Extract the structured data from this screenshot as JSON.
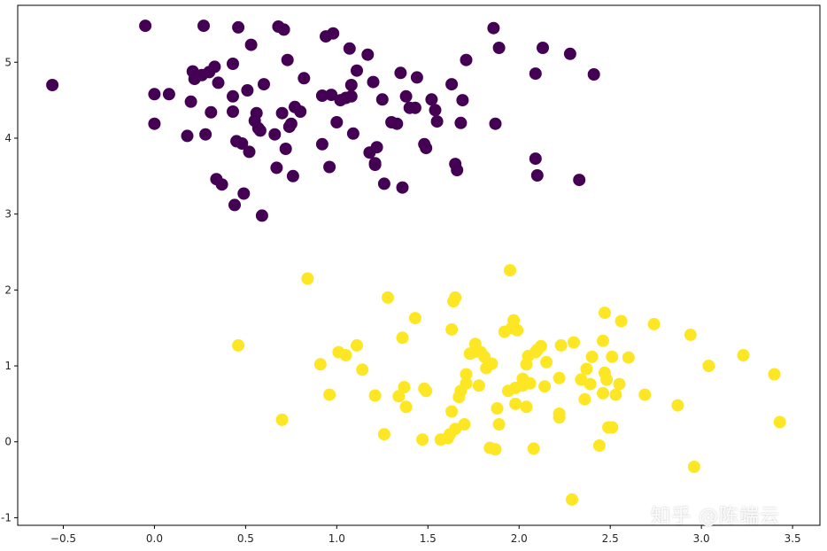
{
  "chart_data": {
    "type": "scatter",
    "title": "",
    "xlabel": "",
    "ylabel": "",
    "xlim": [
      -0.75,
      3.65
    ],
    "ylim": [
      -1.1,
      5.75
    ],
    "xticks": [
      -0.5,
      0.0,
      0.5,
      1.0,
      1.5,
      2.0,
      2.5,
      3.0,
      3.5
    ],
    "xtick_labels": [
      "−0.5",
      "0.0",
      "0.5",
      "1.0",
      "1.5",
      "2.0",
      "2.5",
      "3.0",
      "3.5"
    ],
    "yticks": [
      -1,
      0,
      1,
      2,
      3,
      4,
      5
    ],
    "ytick_labels": [
      "-1",
      "0",
      "1",
      "2",
      "3",
      "4",
      "5"
    ],
    "grid": false,
    "series": [
      {
        "color": "#440154",
        "points": [
          [
            -0.56,
            4.7
          ],
          [
            -0.05,
            5.48
          ],
          [
            0.0,
            4.58
          ],
          [
            0.0,
            4.19
          ],
          [
            0.08,
            4.58
          ],
          [
            0.18,
            4.03
          ],
          [
            0.2,
            4.48
          ],
          [
            0.21,
            4.88
          ],
          [
            0.22,
            4.78
          ],
          [
            0.26,
            4.83
          ],
          [
            0.27,
            5.48
          ],
          [
            0.28,
            4.05
          ],
          [
            0.3,
            4.87
          ],
          [
            0.31,
            4.34
          ],
          [
            0.33,
            4.94
          ],
          [
            0.34,
            3.46
          ],
          [
            0.35,
            4.73
          ],
          [
            0.37,
            3.39
          ],
          [
            0.43,
            4.98
          ],
          [
            0.43,
            4.35
          ],
          [
            0.43,
            4.55
          ],
          [
            0.44,
            3.12
          ],
          [
            0.45,
            3.96
          ],
          [
            0.46,
            5.46
          ],
          [
            0.48,
            3.93
          ],
          [
            0.49,
            3.27
          ],
          [
            0.51,
            4.63
          ],
          [
            0.52,
            3.82
          ],
          [
            0.53,
            5.23
          ],
          [
            0.55,
            4.23
          ],
          [
            0.56,
            4.33
          ],
          [
            0.57,
            4.13
          ],
          [
            0.58,
            4.1
          ],
          [
            0.59,
            2.98
          ],
          [
            0.6,
            4.71
          ],
          [
            0.66,
            4.05
          ],
          [
            0.67,
            3.61
          ],
          [
            0.68,
            5.47
          ],
          [
            0.7,
            4.33
          ],
          [
            0.71,
            5.43
          ],
          [
            0.72,
            3.86
          ],
          [
            0.73,
            5.03
          ],
          [
            0.74,
            4.15
          ],
          [
            0.75,
            4.19
          ],
          [
            0.76,
            3.5
          ],
          [
            0.77,
            4.41
          ],
          [
            0.8,
            4.35
          ],
          [
            0.82,
            4.79
          ],
          [
            0.92,
            3.92
          ],
          [
            0.92,
            4.56
          ],
          [
            0.94,
            5.34
          ],
          [
            0.96,
            3.62
          ],
          [
            0.97,
            4.57
          ],
          [
            0.98,
            5.38
          ],
          [
            1.0,
            4.21
          ],
          [
            1.02,
            4.5
          ],
          [
            1.05,
            4.53
          ],
          [
            1.07,
            5.18
          ],
          [
            1.08,
            4.7
          ],
          [
            1.08,
            4.55
          ],
          [
            1.09,
            4.06
          ],
          [
            1.11,
            4.89
          ],
          [
            1.17,
            5.1
          ],
          [
            1.18,
            3.81
          ],
          [
            1.2,
            4.74
          ],
          [
            1.21,
            3.65
          ],
          [
            1.21,
            3.67
          ],
          [
            1.22,
            3.88
          ],
          [
            1.25,
            4.51
          ],
          [
            1.26,
            3.4
          ],
          [
            1.3,
            4.21
          ],
          [
            1.33,
            4.19
          ],
          [
            1.35,
            4.86
          ],
          [
            1.36,
            3.35
          ],
          [
            1.38,
            4.55
          ],
          [
            1.4,
            4.4
          ],
          [
            1.43,
            4.4
          ],
          [
            1.44,
            4.8
          ],
          [
            1.48,
            3.92
          ],
          [
            1.49,
            3.87
          ],
          [
            1.52,
            4.51
          ],
          [
            1.54,
            4.37
          ],
          [
            1.55,
            4.22
          ],
          [
            1.63,
            4.71
          ],
          [
            1.65,
            3.66
          ],
          [
            1.66,
            3.58
          ],
          [
            1.68,
            4.2
          ],
          [
            1.69,
            4.5
          ],
          [
            1.71,
            5.03
          ],
          [
            1.86,
            5.45
          ],
          [
            1.87,
            4.19
          ],
          [
            1.89,
            5.19
          ],
          [
            2.09,
            3.73
          ],
          [
            2.09,
            4.85
          ],
          [
            2.1,
            3.51
          ],
          [
            2.13,
            5.19
          ],
          [
            2.28,
            5.11
          ],
          [
            2.33,
            3.45
          ],
          [
            2.41,
            4.84
          ]
        ]
      },
      {
        "color": "#fde725",
        "points": [
          [
            0.46,
            1.27
          ],
          [
            0.7,
            0.29
          ],
          [
            0.84,
            2.15
          ],
          [
            0.91,
            1.02
          ],
          [
            0.96,
            0.62
          ],
          [
            1.01,
            1.18
          ],
          [
            1.05,
            1.14
          ],
          [
            1.11,
            1.27
          ],
          [
            1.14,
            0.95
          ],
          [
            1.21,
            0.61
          ],
          [
            1.26,
            0.1
          ],
          [
            1.28,
            1.9
          ],
          [
            1.34,
            0.6
          ],
          [
            1.36,
            1.37
          ],
          [
            1.37,
            0.72
          ],
          [
            1.38,
            0.46
          ],
          [
            1.43,
            1.63
          ],
          [
            1.47,
            0.03
          ],
          [
            1.48,
            0.7
          ],
          [
            1.49,
            0.67
          ],
          [
            1.57,
            0.03
          ],
          [
            1.61,
            0.05
          ],
          [
            1.62,
            0.1
          ],
          [
            1.63,
            0.4
          ],
          [
            1.63,
            1.48
          ],
          [
            1.64,
            1.85
          ],
          [
            1.65,
            1.9
          ],
          [
            1.65,
            0.17
          ],
          [
            1.67,
            0.59
          ],
          [
            1.68,
            0.67
          ],
          [
            1.7,
            0.23
          ],
          [
            1.71,
            0.89
          ],
          [
            1.71,
            0.77
          ],
          [
            1.73,
            1.16
          ],
          [
            1.75,
            1.18
          ],
          [
            1.76,
            1.29
          ],
          [
            1.78,
            0.74
          ],
          [
            1.79,
            1.18
          ],
          [
            1.81,
            1.12
          ],
          [
            1.82,
            0.97
          ],
          [
            1.84,
            -0.08
          ],
          [
            1.85,
            1.03
          ],
          [
            1.87,
            -0.1
          ],
          [
            1.88,
            0.44
          ],
          [
            1.89,
            0.23
          ],
          [
            1.92,
            1.45
          ],
          [
            1.94,
            0.67
          ],
          [
            1.95,
            2.26
          ],
          [
            1.96,
            1.5
          ],
          [
            1.97,
            1.6
          ],
          [
            1.98,
            0.71
          ],
          [
            1.98,
            0.5
          ],
          [
            1.99,
            1.47
          ],
          [
            2.02,
            0.83
          ],
          [
            2.02,
            0.74
          ],
          [
            2.04,
            1.02
          ],
          [
            2.04,
            0.46
          ],
          [
            2.05,
            1.13
          ],
          [
            2.06,
            0.77
          ],
          [
            2.08,
            -0.09
          ],
          [
            2.09,
            1.18
          ],
          [
            2.1,
            1.21
          ],
          [
            2.12,
            1.26
          ],
          [
            2.14,
            0.73
          ],
          [
            2.15,
            1.05
          ],
          [
            2.22,
            0.84
          ],
          [
            2.22,
            0.37
          ],
          [
            2.22,
            0.32
          ],
          [
            2.23,
            1.27
          ],
          [
            2.29,
            -0.76
          ],
          [
            2.3,
            1.31
          ],
          [
            2.34,
            0.82
          ],
          [
            2.36,
            0.56
          ],
          [
            2.37,
            0.96
          ],
          [
            2.39,
            0.76
          ],
          [
            2.4,
            1.12
          ],
          [
            2.44,
            -0.05
          ],
          [
            2.46,
            0.64
          ],
          [
            2.46,
            1.33
          ],
          [
            2.47,
            1.7
          ],
          [
            2.47,
            0.91
          ],
          [
            2.48,
            0.82
          ],
          [
            2.49,
            0.19
          ],
          [
            2.51,
            0.19
          ],
          [
            2.51,
            1.12
          ],
          [
            2.53,
            0.62
          ],
          [
            2.55,
            0.76
          ],
          [
            2.56,
            1.59
          ],
          [
            2.6,
            1.11
          ],
          [
            2.69,
            0.62
          ],
          [
            2.74,
            1.55
          ],
          [
            2.87,
            0.48
          ],
          [
            2.94,
            1.41
          ],
          [
            2.96,
            -0.33
          ],
          [
            3.04,
            1.0
          ],
          [
            3.23,
            1.14
          ],
          [
            3.4,
            0.89
          ],
          [
            3.43,
            0.26
          ]
        ]
      }
    ]
  },
  "watermark": {
    "text": "知乎 @陈端云"
  }
}
